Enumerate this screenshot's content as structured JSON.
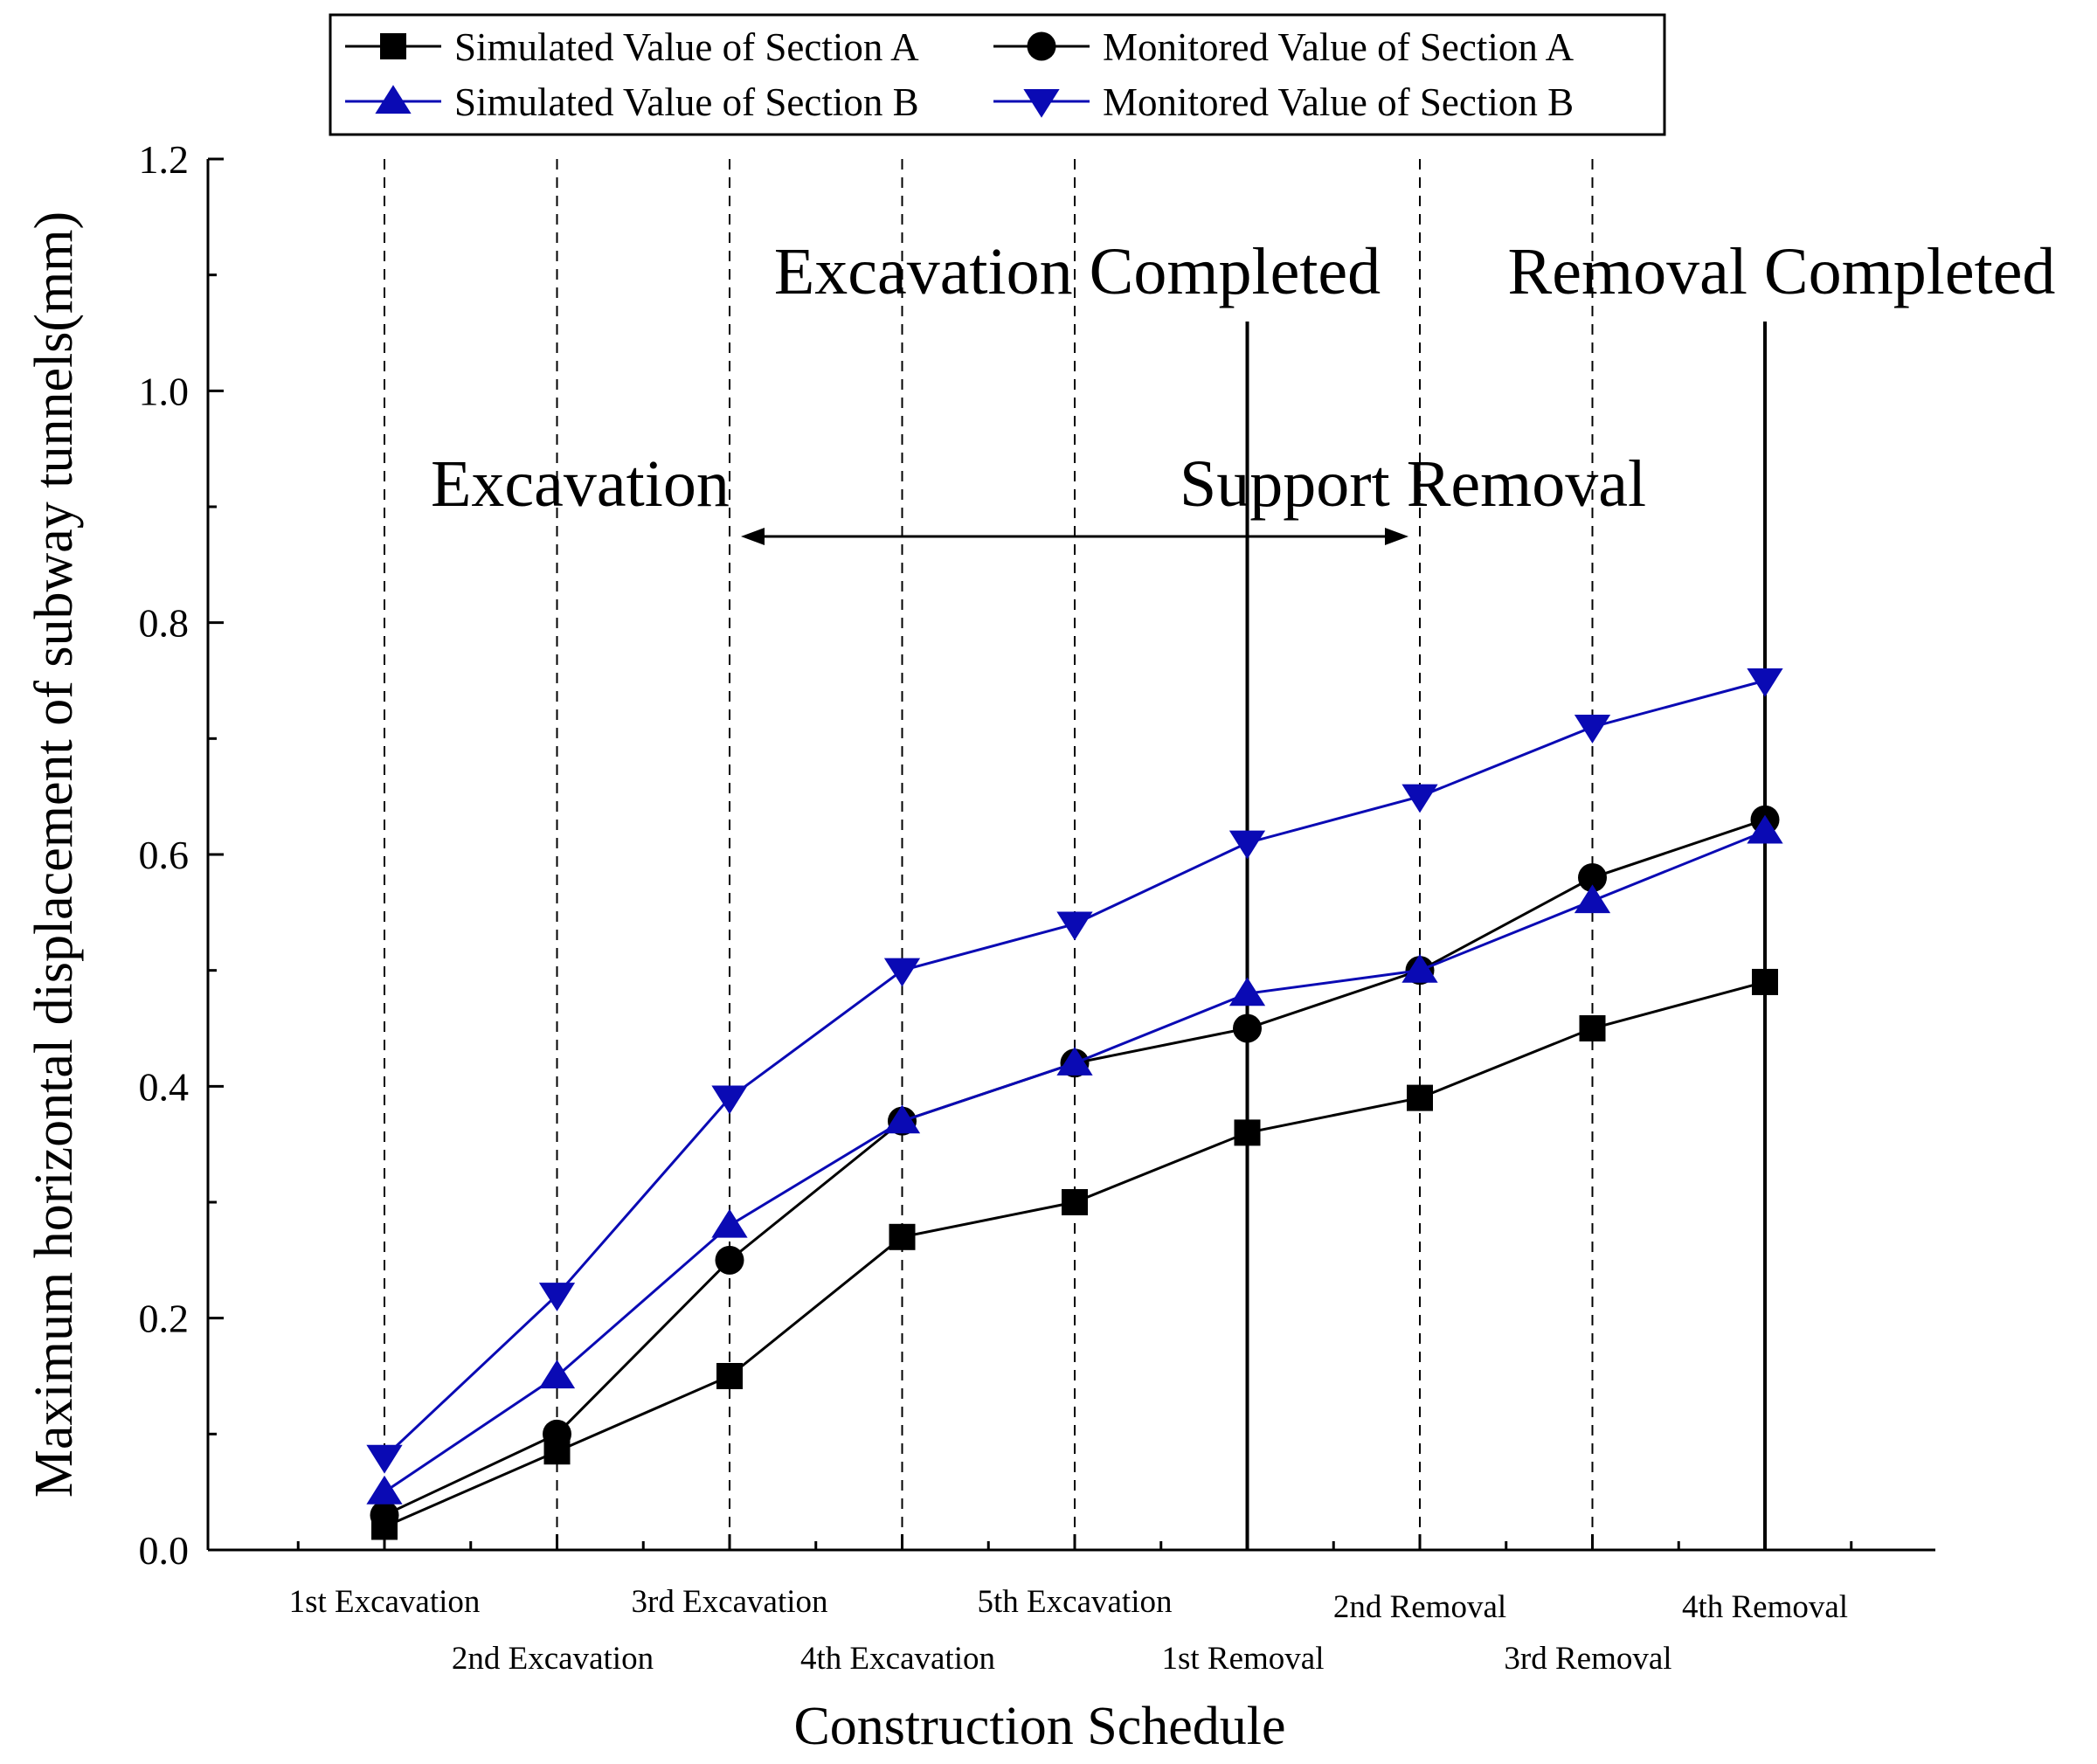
{
  "chart_data": {
    "type": "line",
    "title": "",
    "xlabel": "Construction Schedule",
    "ylabel": "Maximum horizontal displacement of subway tunnels(mm)",
    "ylim": [
      0.0,
      1.2
    ],
    "yticks": [
      "0.0",
      "0.2",
      "0.4",
      "0.6",
      "0.8",
      "1.0",
      "1.2"
    ],
    "categories": [
      "1st Excavation",
      "2nd Excavation",
      "3rd Excavation",
      "4th Excavation",
      "5th Excavation",
      "1st Removal",
      "2nd Removal",
      "3rd Removal",
      "4th Removal"
    ],
    "series": [
      {
        "name": "Simulated Value of Section A",
        "color": "#000000",
        "marker": "square",
        "values": [
          0.02,
          0.085,
          0.15,
          0.27,
          0.3,
          0.36,
          0.39,
          0.45,
          0.49
        ]
      },
      {
        "name": "Monitored Value of Section A",
        "color": "#000000",
        "marker": "circle",
        "values": [
          0.03,
          0.1,
          0.25,
          0.37,
          0.42,
          0.45,
          0.5,
          0.58,
          0.63
        ]
      },
      {
        "name": "Simulated Value of Section B",
        "color": "#0a0ab4",
        "marker": "triangle-up",
        "values": [
          0.05,
          0.15,
          0.28,
          0.37,
          0.42,
          0.48,
          0.5,
          0.56,
          0.62
        ]
      },
      {
        "name": "Monitored Value of Section B",
        "color": "#0a0ab4",
        "marker": "triangle-down",
        "values": [
          0.08,
          0.22,
          0.39,
          0.5,
          0.54,
          0.61,
          0.65,
          0.71,
          0.75
        ]
      }
    ],
    "legend_position": "top",
    "stage_lines": {
      "dashed_at": [
        "1st Excavation",
        "2nd Excavation",
        "3rd Excavation",
        "4th Excavation",
        "5th Excavation",
        "2nd Removal",
        "3rd Removal",
        "4th Removal"
      ],
      "solid_at": [
        "1st Removal",
        "4th Removal"
      ]
    },
    "annotations": {
      "excavation_completed": "Excavation Completed",
      "removal_completed": "Removal Completed",
      "excavation": "Excavation",
      "support_removal": "Support Removal"
    }
  }
}
